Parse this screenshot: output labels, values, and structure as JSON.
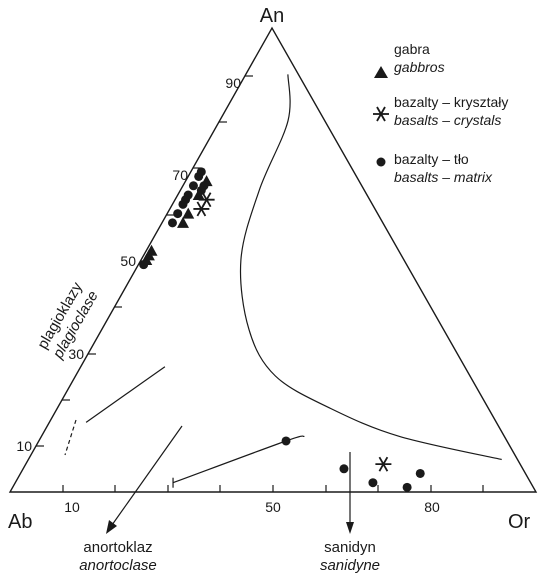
{
  "chart_data": {
    "type": "scatter",
    "diagram": "ternary",
    "vertices": {
      "top": "An",
      "left": "Ab",
      "right": "Or"
    },
    "left_axis": {
      "ticks": [
        "10",
        "30",
        "50",
        "70",
        "90"
      ],
      "label_pl": "plagioklazy",
      "label_en": "plagioclase"
    },
    "bottom_axis": {
      "ticks": [
        "10",
        "50",
        "80"
      ]
    },
    "arrows": [
      {
        "label_pl": "anortoklaz",
        "label_en": "anortoclase"
      },
      {
        "label_pl": "sanidyn",
        "label_en": "sanidyne"
      }
    ],
    "legend": {
      "placement": "top-right",
      "items": [
        {
          "marker": "triangle",
          "label_pl": "gabra",
          "label_en": "gabbros"
        },
        {
          "marker": "asterisk",
          "label_pl": "bazalty – kryształy",
          "label_en": "basalts – crystals"
        },
        {
          "marker": "circle",
          "label_pl": "bazalty – tło",
          "label_en": "basalts – matrix"
        }
      ]
    },
    "series": [
      {
        "marker": "triangle",
        "points": [
          {
            "an": 67,
            "ab": 29,
            "or": 4
          },
          {
            "an": 64,
            "ab": 32,
            "or": 4
          },
          {
            "an": 60,
            "ab": 36,
            "or": 4
          },
          {
            "an": 58,
            "ab": 38,
            "or": 4
          },
          {
            "an": 52,
            "ab": 47,
            "or": 1
          },
          {
            "an": 50,
            "ab": 49,
            "or": 1
          },
          {
            "an": 51,
            "ab": 48,
            "or": 1
          }
        ]
      },
      {
        "marker": "asterisk",
        "points": [
          {
            "an": 63,
            "ab": 31,
            "or": 6
          },
          {
            "an": 61,
            "ab": 33,
            "or": 6
          },
          {
            "an": 6,
            "ab": 26,
            "or": 68
          }
        ]
      },
      {
        "marker": "circle",
        "points": [
          {
            "an": 69,
            "ab": 29,
            "or": 2
          },
          {
            "an": 68,
            "ab": 30,
            "or": 2
          },
          {
            "an": 66,
            "ab": 30,
            "or": 4
          },
          {
            "an": 66,
            "ab": 32,
            "or": 2
          },
          {
            "an": 65,
            "ab": 31,
            "or": 4
          },
          {
            "an": 64,
            "ab": 34,
            "or": 2
          },
          {
            "an": 63,
            "ab": 35,
            "or": 2
          },
          {
            "an": 62,
            "ab": 36,
            "or": 2
          },
          {
            "an": 60,
            "ab": 38,
            "or": 2
          },
          {
            "an": 58,
            "ab": 40,
            "or": 2
          },
          {
            "an": 49,
            "ab": 50,
            "or": 1
          },
          {
            "an": 11,
            "ab": 42,
            "or": 47
          },
          {
            "an": 5,
            "ab": 34,
            "or": 61
          },
          {
            "an": 2,
            "ab": 30,
            "or": 68
          },
          {
            "an": 4,
            "ab": 20,
            "or": 76
          },
          {
            "an": 1,
            "ab": 24,
            "or": 75
          }
        ]
      }
    ],
    "curves": [
      {
        "name": "upper-boundary",
        "points": [
          {
            "an": 90,
            "ab": 2,
            "or": 8
          },
          {
            "an": 80,
            "ab": 7,
            "or": 13
          },
          {
            "an": 65,
            "ab": 20,
            "or": 15
          },
          {
            "an": 50,
            "ab": 31,
            "or": 19
          },
          {
            "an": 35,
            "ab": 37,
            "or": 28
          },
          {
            "an": 25,
            "ab": 37,
            "or": 38
          },
          {
            "an": 18,
            "ab": 30,
            "or": 52
          },
          {
            "an": 12,
            "ab": 20,
            "or": 68
          },
          {
            "an": 7,
            "ab": 3,
            "or": 90
          }
        ]
      },
      {
        "name": "left-tie-line",
        "points": [
          {
            "an": 15,
            "ab": 78,
            "or": 7
          },
          {
            "an": 27,
            "ab": 57,
            "or": 16
          }
        ]
      },
      {
        "name": "lower-tie-line",
        "points": [
          {
            "an": 2,
            "ab": 68,
            "or": 30
          },
          {
            "an": 11,
            "ab": 42,
            "or": 47
          },
          {
            "an": 12,
            "ab": 38,
            "or": 50
          }
        ]
      }
    ]
  }
}
